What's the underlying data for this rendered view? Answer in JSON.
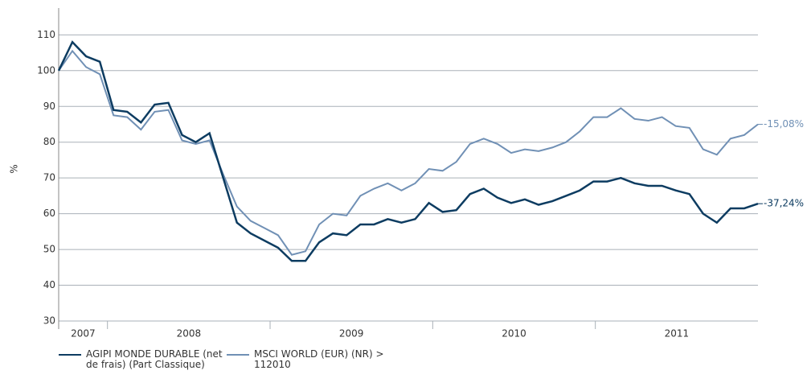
{
  "chart_data": {
    "type": "line",
    "y_label": "%",
    "xlim": [
      2007.7,
      2012
    ],
    "xticks": [
      2007,
      2008,
      2009,
      2010,
      2011
    ],
    "ylim": [
      30,
      117.5
    ],
    "yticks": [
      30,
      40,
      50,
      60,
      70,
      80,
      90,
      100,
      110
    ],
    "grid": true,
    "series": [
      {
        "name": "AGIPI MONDE DURABLE (net de frais) (Part Classique)",
        "color": "#0d3c61",
        "end_label": "-37,24%",
        "values": [
          100,
          108,
          104,
          102.5,
          89,
          88.5,
          85.5,
          90.5,
          91,
          82,
          80,
          82.5,
          70,
          57.5,
          54.5,
          52.5,
          50.5,
          46.8,
          46.8,
          52,
          54.5,
          54,
          57,
          57,
          58.5,
          57.5,
          58.5,
          63,
          60.5,
          61,
          65.5,
          67,
          64.5,
          63,
          64,
          62.5,
          63.5,
          65,
          66.5,
          69,
          69,
          70,
          68.5,
          67.8,
          67.8,
          66.5,
          65.5,
          60,
          57.5,
          61.5,
          61.5,
          62.8
        ]
      },
      {
        "name": "MSCI WORLD (EUR) (NR) > 112010",
        "color": "#7090b5",
        "end_label": "-15,08%",
        "values": [
          100,
          105.5,
          101,
          99,
          87.5,
          87,
          83.5,
          88.5,
          89,
          80.5,
          79.5,
          80.5,
          71,
          62,
          58,
          56,
          54,
          48.5,
          49.5,
          57,
          60,
          59.5,
          65,
          67,
          68.5,
          66.5,
          68.5,
          72.5,
          72,
          74.5,
          79.5,
          81,
          79.5,
          77,
          78,
          77.5,
          78.5,
          80,
          83,
          87,
          87,
          89.5,
          86.5,
          86,
          87,
          84.5,
          84,
          78,
          76.5,
          81,
          82,
          85
        ]
      }
    ]
  }
}
